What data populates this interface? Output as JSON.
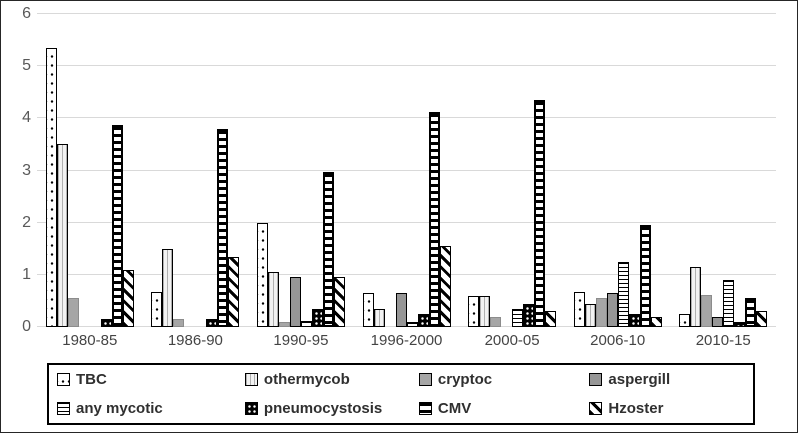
{
  "chart_data": {
    "type": "bar",
    "title": "",
    "xlabel": "",
    "ylabel": "",
    "ylim": [
      0,
      6
    ],
    "yticks": [
      0,
      1,
      2,
      3,
      4,
      5,
      6
    ],
    "grid": true,
    "legend_position": "bottom-box",
    "categories": [
      "1980-85",
      "1986-90",
      "1990-95",
      "1996-2000",
      "2000-05",
      "2006-10",
      "2010-15"
    ],
    "series": [
      {
        "name": "TBC",
        "pattern": "tbc",
        "values": [
          5.35,
          0.68,
          2.0,
          0.65,
          0.6,
          0.68,
          0.25
        ]
      },
      {
        "name": "othermycob",
        "pattern": "othermycob",
        "values": [
          3.5,
          1.5,
          1.05,
          0.35,
          0.6,
          0.45,
          1.15
        ]
      },
      {
        "name": "cryptoc",
        "pattern": "cryptoc",
        "values": [
          0.55,
          0.15,
          0.1,
          0.0,
          0.2,
          0.55,
          0.62
        ]
      },
      {
        "name": "aspergill",
        "pattern": "aspergill",
        "values": [
          0.0,
          0.0,
          0.95,
          0.65,
          0.0,
          0.65,
          0.2
        ]
      },
      {
        "name": "any mycotic",
        "pattern": "anymycotic",
        "values": [
          0.0,
          0.0,
          0.12,
          0.1,
          0.35,
          1.25,
          0.9
        ]
      },
      {
        "name": "pneumocystosis",
        "pattern": "pneumocystosis",
        "values": [
          0.15,
          0.15,
          0.35,
          0.25,
          0.45,
          0.25,
          0.1
        ]
      },
      {
        "name": "CMV",
        "pattern": "cmv",
        "values": [
          3.87,
          3.8,
          2.97,
          4.12,
          4.35,
          1.95,
          0.55
        ]
      },
      {
        "name": "Hzoster",
        "pattern": "hzoster",
        "values": [
          1.1,
          1.35,
          0.95,
          1.55,
          0.3,
          0.2,
          0.3
        ]
      }
    ],
    "colors": {
      "gridline": "#d9d9d9",
      "tick_text": "#595959",
      "bar_outline": "#000000",
      "gray_fill": "#a6a6a6"
    }
  }
}
